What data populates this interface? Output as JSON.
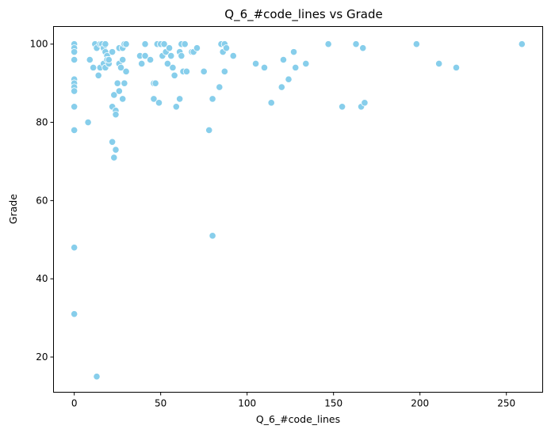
{
  "chart_data": {
    "type": "scatter",
    "title": "Q_6_#code_lines vs Grade",
    "xlabel": "Q_6_#code_lines",
    "ylabel": "Grade",
    "xlim": [
      -12,
      271
    ],
    "ylim": [
      11,
      104.5
    ],
    "xticks": [
      0,
      50,
      100,
      150,
      200,
      250
    ],
    "yticks": [
      20,
      40,
      60,
      80,
      100
    ],
    "grid": false,
    "color": "#87ceeb",
    "points": [
      [
        0,
        100
      ],
      [
        0,
        99
      ],
      [
        0,
        98
      ],
      [
        0,
        96
      ],
      [
        0,
        91
      ],
      [
        0,
        90
      ],
      [
        0,
        89
      ],
      [
        0,
        88
      ],
      [
        0,
        84
      ],
      [
        0,
        78
      ],
      [
        0,
        48
      ],
      [
        0,
        31
      ],
      [
        8,
        80
      ],
      [
        9,
        96
      ],
      [
        11,
        94
      ],
      [
        12,
        100
      ],
      [
        13,
        99
      ],
      [
        13,
        15
      ],
      [
        14,
        92
      ],
      [
        15,
        94
      ],
      [
        15,
        100
      ],
      [
        16,
        100
      ],
      [
        17,
        99
      ],
      [
        17,
        95
      ],
      [
        18,
        98
      ],
      [
        18,
        100
      ],
      [
        18,
        94
      ],
      [
        19,
        97
      ],
      [
        19,
        96
      ],
      [
        20,
        95
      ],
      [
        20,
        96
      ],
      [
        22,
        98
      ],
      [
        22,
        84
      ],
      [
        22,
        75
      ],
      [
        23,
        87
      ],
      [
        23,
        71
      ],
      [
        24,
        83
      ],
      [
        24,
        82
      ],
      [
        24,
        73
      ],
      [
        25,
        90
      ],
      [
        26,
        88
      ],
      [
        26,
        95
      ],
      [
        26,
        99
      ],
      [
        27,
        94
      ],
      [
        28,
        99
      ],
      [
        28,
        96
      ],
      [
        28,
        86
      ],
      [
        29,
        100
      ],
      [
        29,
        90
      ],
      [
        30,
        93
      ],
      [
        30,
        100
      ],
      [
        38,
        97
      ],
      [
        39,
        95
      ],
      [
        41,
        100
      ],
      [
        41,
        97
      ],
      [
        44,
        96
      ],
      [
        46,
        90
      ],
      [
        46,
        86
      ],
      [
        47,
        90
      ],
      [
        48,
        100
      ],
      [
        49,
        85
      ],
      [
        50,
        100
      ],
      [
        51,
        97
      ],
      [
        52,
        100
      ],
      [
        53,
        98
      ],
      [
        54,
        95
      ],
      [
        55,
        99
      ],
      [
        56,
        97
      ],
      [
        57,
        94
      ],
      [
        58,
        92
      ],
      [
        59,
        84
      ],
      [
        61,
        98
      ],
      [
        61,
        86
      ],
      [
        62,
        100
      ],
      [
        62,
        97
      ],
      [
        63,
        93
      ],
      [
        64,
        100
      ],
      [
        65,
        93
      ],
      [
        68,
        98
      ],
      [
        69,
        98
      ],
      [
        71,
        99
      ],
      [
        75,
        93
      ],
      [
        78,
        78
      ],
      [
        80,
        86
      ],
      [
        80,
        51
      ],
      [
        84,
        89
      ],
      [
        85,
        100
      ],
      [
        86,
        98
      ],
      [
        87,
        100
      ],
      [
        87,
        93
      ],
      [
        88,
        99
      ],
      [
        92,
        97
      ],
      [
        105,
        95
      ],
      [
        110,
        94
      ],
      [
        114,
        85
      ],
      [
        120,
        89
      ],
      [
        121,
        96
      ],
      [
        124,
        91
      ],
      [
        127,
        98
      ],
      [
        128,
        94
      ],
      [
        134,
        95
      ],
      [
        147,
        100
      ],
      [
        155,
        84
      ],
      [
        163,
        100
      ],
      [
        166,
        84
      ],
      [
        167,
        99
      ],
      [
        168,
        85
      ],
      [
        198,
        100
      ],
      [
        211,
        95
      ],
      [
        221,
        94
      ],
      [
        259,
        100
      ]
    ]
  }
}
